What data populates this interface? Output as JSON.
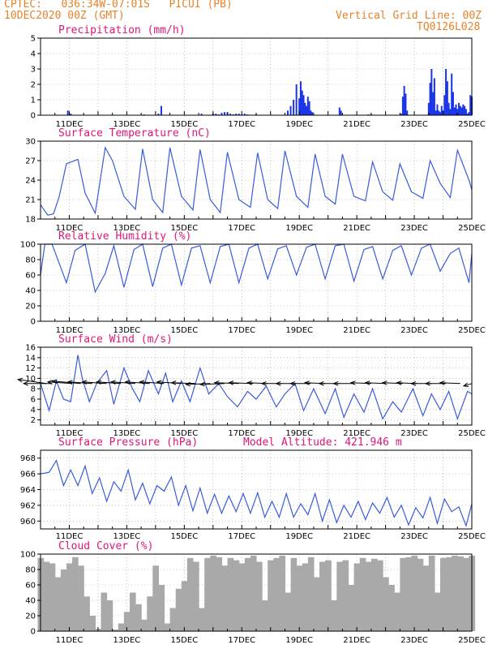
{
  "header": {
    "line1_left": "CPTEC:   036:34W-07:01S   PICUI (PB)",
    "line2_left": "10DEC2020 00Z (GMT)",
    "line2_right": "Vertical Grid Line: 00Z",
    "line3_right": "TQ0126L028"
  },
  "colors": {
    "header": "#e8822a",
    "title": "#e0157a",
    "line": "#3a5bd9",
    "bar": "#1a35e8",
    "cloud": "#a9a9a9",
    "arrow": "#000000"
  },
  "chart_data": [
    {
      "id": "precip",
      "type": "bar",
      "title": "Precipitation (mm/h)",
      "ylim": [
        0,
        5
      ],
      "yticks": [
        0,
        1,
        2,
        3,
        4,
        5
      ],
      "x_unit": "days since 10DEC2020 00Z",
      "x_ticks": [
        "11DEC",
        "13DEC",
        "15DEC",
        "17DEC",
        "19DEC",
        "21DEC",
        "23DEC",
        "25DEC"
      ],
      "x": [
        0.95,
        1.05,
        3.6,
        4.1,
        4.2,
        5.6,
        6.0,
        6.1,
        6.2,
        6.3,
        6.4,
        6.5,
        6.6,
        6.7,
        6.8,
        6.9,
        7.0,
        7.1,
        7.2,
        7.5,
        8.6,
        8.7,
        8.8,
        8.9,
        9.0,
        9.05,
        9.1,
        9.15,
        9.2,
        9.25,
        9.3,
        9.35,
        9.4,
        9.45,
        10.4,
        10.45,
        11.4,
        11.5,
        12.55,
        12.6,
        12.65,
        12.7,
        12.75,
        13.5,
        13.55,
        13.6,
        13.65,
        13.7,
        13.75,
        13.8,
        13.85,
        13.9,
        13.95,
        14.0,
        14.05,
        14.1,
        14.15,
        14.2,
        14.25,
        14.3,
        14.35,
        14.4,
        14.45,
        14.5,
        14.55,
        14.6,
        14.65,
        14.7,
        14.75,
        14.8,
        14.85,
        14.9,
        14.95,
        15.0
      ],
      "values": [
        0.3,
        0.1,
        0.05,
        0.1,
        0.6,
        0.1,
        0.1,
        0.1,
        0.05,
        0.15,
        0.2,
        0.2,
        0.1,
        0.05,
        0.1,
        0.1,
        0.05,
        0.1,
        0.05,
        0.05,
        0.3,
        0.6,
        1.0,
        2.0,
        1.1,
        2.2,
        1.6,
        1.3,
        0.8,
        0.6,
        1.2,
        0.9,
        0.3,
        0.2,
        0.5,
        0.3,
        0.05,
        0.05,
        0.1,
        1.2,
        1.9,
        1.4,
        0.3,
        0.8,
        2.1,
        3.0,
        1.5,
        2.4,
        0.3,
        0.7,
        0.3,
        0.2,
        0.6,
        0.3,
        1.3,
        3.0,
        2.2,
        0.8,
        0.4,
        2.7,
        1.5,
        0.5,
        0.7,
        0.4,
        0.8,
        0.6,
        0.5,
        0.7,
        0.6,
        0.4,
        0.1,
        0.2,
        1.3,
        1.2
      ]
    },
    {
      "id": "temp",
      "type": "line",
      "title": "Surface Temperature (nC)",
      "ylim": [
        18,
        30
      ],
      "yticks": [
        18,
        21,
        24,
        27,
        30
      ],
      "x_ticks": [
        "11DEC",
        "13DEC",
        "15DEC",
        "17DEC",
        "19DEC",
        "21DEC",
        "23DEC",
        "25DEC"
      ],
      "x": [
        0,
        0.25,
        0.45,
        0.65,
        0.9,
        1.3,
        1.55,
        1.9,
        2.25,
        2.5,
        2.9,
        3.3,
        3.55,
        3.9,
        4.25,
        4.5,
        4.9,
        5.3,
        5.55,
        5.9,
        6.25,
        6.5,
        6.9,
        7.3,
        7.55,
        7.9,
        8.25,
        8.5,
        8.9,
        9.3,
        9.55,
        9.9,
        10.25,
        10.5,
        10.9,
        11.3,
        11.55,
        11.9,
        12.25,
        12.5,
        12.9,
        13.3,
        13.55,
        13.9,
        14.25,
        14.5,
        14.9,
        15.0
      ],
      "values": [
        20.2,
        18.6,
        18.8,
        21.5,
        26.5,
        27.2,
        22.0,
        18.9,
        29.0,
        27.0,
        21.5,
        19.5,
        28.8,
        21.0,
        19.0,
        29.0,
        21.5,
        19.4,
        28.7,
        21.0,
        19.0,
        28.3,
        21.0,
        19.8,
        28.2,
        21.0,
        19.6,
        28.5,
        21.5,
        19.8,
        28.0,
        21.5,
        20.3,
        28.0,
        21.5,
        20.8,
        26.8,
        22.2,
        20.9,
        26.5,
        22.2,
        21.2,
        27.0,
        23.5,
        21.3,
        28.6,
        24.0,
        22.5
      ]
    },
    {
      "id": "rh",
      "type": "line",
      "title": "Relative Humidity (%)",
      "ylim": [
        0,
        100
      ],
      "yticks": [
        0,
        20,
        40,
        60,
        80,
        100
      ],
      "x_ticks": [
        "11DEC",
        "13DEC",
        "15DEC",
        "17DEC",
        "19DEC",
        "21DEC",
        "23DEC",
        "25DEC"
      ],
      "x": [
        0,
        0.15,
        0.4,
        0.65,
        0.9,
        1.2,
        1.55,
        1.9,
        2.25,
        2.55,
        2.9,
        3.25,
        3.55,
        3.9,
        4.25,
        4.55,
        4.9,
        5.25,
        5.55,
        5.9,
        6.25,
        6.55,
        6.9,
        7.25,
        7.55,
        7.9,
        8.25,
        8.55,
        8.9,
        9.25,
        9.55,
        9.9,
        10.25,
        10.55,
        10.9,
        11.25,
        11.55,
        11.9,
        12.25,
        12.55,
        12.9,
        13.25,
        13.55,
        13.9,
        14.25,
        14.55,
        14.9,
        15.0
      ],
      "values": [
        60,
        100,
        100,
        75,
        50,
        92,
        100,
        38,
        62,
        98,
        44,
        93,
        100,
        45,
        95,
        100,
        47,
        95,
        98,
        50,
        97,
        100,
        50,
        95,
        100,
        55,
        94,
        98,
        60,
        96,
        100,
        55,
        98,
        100,
        52,
        93,
        97,
        55,
        92,
        98,
        60,
        95,
        100,
        65,
        88,
        95,
        50,
        88
      ]
    },
    {
      "id": "wind",
      "type": "line",
      "title": "Surface Wind (m/s)",
      "ylim": [
        1,
        16
      ],
      "yticks": [
        2,
        4,
        6,
        8,
        10,
        12,
        14,
        16
      ],
      "x_ticks": [
        "11DEC",
        "13DEC",
        "15DEC",
        "17DEC",
        "19DEC",
        "21DEC",
        "23DEC",
        "25DEC"
      ],
      "x": [
        0,
        0.3,
        0.55,
        0.8,
        1.05,
        1.3,
        1.45,
        1.7,
        1.95,
        2.3,
        2.55,
        2.9,
        3.2,
        3.45,
        3.75,
        4.1,
        4.35,
        4.6,
        4.9,
        5.2,
        5.55,
        5.85,
        6.2,
        6.5,
        6.85,
        7.2,
        7.5,
        7.85,
        8.2,
        8.5,
        8.85,
        9.15,
        9.5,
        9.9,
        10.25,
        10.55,
        10.9,
        11.25,
        11.55,
        11.9,
        12.25,
        12.55,
        12.95,
        13.3,
        13.6,
        13.9,
        14.2,
        14.5,
        14.85,
        15.0
      ],
      "values": [
        9,
        3.8,
        9.5,
        6,
        5.5,
        14.5,
        10,
        5.5,
        9,
        11.5,
        5,
        12,
        8,
        5.5,
        11.5,
        7,
        11,
        5.5,
        9.5,
        5.5,
        12,
        7,
        9,
        6.5,
        4.5,
        7.5,
        6,
        8.5,
        4.5,
        7,
        9,
        3.8,
        8,
        3.2,
        8,
        2.5,
        7,
        3.5,
        8,
        2.2,
        5.5,
        3.5,
        8,
        2.8,
        7,
        4,
        7.5,
        2.2,
        7.5,
        7
      ],
      "arrows": [
        {
          "x": 0.2,
          "u": -0.35,
          "v": 0.25
        },
        {
          "x": 0.4,
          "u": -0.35,
          "v": 0
        },
        {
          "x": 1.1,
          "u": -0.3,
          "v": 0.1
        },
        {
          "x": 1.4,
          "u": -0.35,
          "v": 0.15
        },
        {
          "x": 1.8,
          "u": -0.3,
          "v": 0.1
        },
        {
          "x": 2.3,
          "u": -0.3,
          "v": 0.1
        },
        {
          "x": 2.8,
          "u": -0.3,
          "v": 0.1
        },
        {
          "x": 3.3,
          "u": -0.3,
          "v": 0.1
        },
        {
          "x": 3.8,
          "u": -0.3,
          "v": 0.1
        },
        {
          "x": 4.3,
          "u": -0.3,
          "v": 0.1
        },
        {
          "x": 4.9,
          "u": -0.3,
          "v": 0.1
        },
        {
          "x": 5.4,
          "u": -0.3,
          "v": 0.05
        },
        {
          "x": 5.9,
          "u": -0.3,
          "v": -0.05
        },
        {
          "x": 6.4,
          "u": -0.3,
          "v": -0.05
        },
        {
          "x": 6.9,
          "u": -0.3,
          "v": 0.05
        },
        {
          "x": 7.4,
          "u": -0.3,
          "v": 0.05
        },
        {
          "x": 7.9,
          "u": -0.25,
          "v": 0.05
        },
        {
          "x": 8.4,
          "u": -0.25,
          "v": 0
        },
        {
          "x": 8.9,
          "u": -0.25,
          "v": 0
        },
        {
          "x": 9.4,
          "u": -0.25,
          "v": 0
        },
        {
          "x": 9.9,
          "u": -0.25,
          "v": 0.05
        },
        {
          "x": 10.4,
          "u": -0.25,
          "v": 0
        },
        {
          "x": 10.9,
          "u": -0.25,
          "v": 0
        },
        {
          "x": 11.5,
          "u": -0.25,
          "v": 0.05
        },
        {
          "x": 12.0,
          "u": -0.25,
          "v": 0.05
        },
        {
          "x": 12.6,
          "u": -0.25,
          "v": 0.05
        },
        {
          "x": 13.1,
          "u": -0.25,
          "v": 0.05
        },
        {
          "x": 13.6,
          "u": -0.25,
          "v": 0
        },
        {
          "x": 14.1,
          "u": -0.25,
          "v": 0
        },
        {
          "x": 14.6,
          "u": -0.25,
          "v": 0.05
        },
        {
          "x": 15.0,
          "u": -0.1,
          "v": -0.15
        }
      ]
    },
    {
      "id": "press",
      "type": "line",
      "title": "Surface Pressure (hPa)",
      "annotation": "Model Altitude: 421.946 m",
      "ylim": [
        959,
        969
      ],
      "yticks": [
        960,
        962,
        964,
        966,
        968
      ],
      "x_ticks": [
        "11DEC",
        "13DEC",
        "15DEC",
        "17DEC",
        "19DEC",
        "21DEC",
        "23DEC",
        "25DEC"
      ],
      "x": [
        0,
        0.3,
        0.55,
        0.8,
        1.05,
        1.3,
        1.55,
        1.8,
        2.05,
        2.3,
        2.55,
        2.8,
        3.05,
        3.3,
        3.55,
        3.8,
        4.05,
        4.3,
        4.55,
        4.8,
        5.05,
        5.3,
        5.55,
        5.8,
        6.05,
        6.3,
        6.55,
        6.8,
        7.05,
        7.3,
        7.55,
        7.8,
        8.05,
        8.3,
        8.55,
        8.8,
        9.05,
        9.3,
        9.55,
        9.8,
        10.05,
        10.3,
        10.55,
        10.8,
        11.05,
        11.3,
        11.55,
        11.8,
        12.05,
        12.3,
        12.55,
        12.8,
        13.05,
        13.3,
        13.55,
        13.8,
        14.05,
        14.3,
        14.55,
        14.8,
        15.0
      ],
      "values": [
        966,
        966.2,
        967.7,
        964.5,
        966.5,
        964.5,
        967.0,
        963.5,
        965.5,
        962.5,
        965,
        963.8,
        966.5,
        962.7,
        964.8,
        962.2,
        964.5,
        963.8,
        965.6,
        962,
        964.5,
        961.3,
        964.2,
        961,
        963.4,
        961,
        963.2,
        961.2,
        963.5,
        961,
        963.6,
        960.5,
        962.5,
        960.5,
        963.5,
        960.5,
        962.2,
        960.8,
        963.5,
        960,
        962.7,
        959.8,
        962.0,
        960.5,
        962.5,
        960.2,
        962.3,
        961,
        963,
        960.5,
        962.0,
        959.5,
        961.7,
        960.4,
        963,
        959.7,
        962.8,
        961.2,
        961.8,
        959.4,
        962.2
      ]
    },
    {
      "id": "cloud",
      "type": "area",
      "title": "Cloud Cover (%)",
      "ylim": [
        0,
        100
      ],
      "yticks": [
        0,
        20,
        40,
        60,
        80,
        100
      ],
      "x_ticks": [
        "11DEC",
        "13DEC",
        "15DEC",
        "17DEC",
        "19DEC",
        "21DEC",
        "23DEC",
        "25DEC"
      ],
      "x": [
        0,
        0.2,
        0.4,
        0.6,
        0.8,
        1.0,
        1.2,
        1.4,
        1.6,
        1.8,
        2.0,
        2.2,
        2.4,
        2.6,
        2.8,
        3.0,
        3.2,
        3.4,
        3.6,
        3.8,
        4.0,
        4.2,
        4.4,
        4.6,
        4.8,
        5.0,
        5.2,
        5.4,
        5.6,
        5.8,
        6.0,
        6.2,
        6.4,
        6.6,
        6.8,
        7.0,
        7.2,
        7.4,
        7.6,
        7.8,
        8.0,
        8.2,
        8.4,
        8.6,
        8.8,
        9.0,
        9.2,
        9.4,
        9.6,
        9.8,
        10.0,
        10.2,
        10.4,
        10.6,
        10.8,
        11.0,
        11.2,
        11.4,
        11.6,
        11.8,
        12.0,
        12.2,
        12.4,
        12.6,
        12.8,
        13.0,
        13.2,
        13.4,
        13.6,
        13.8,
        14.0,
        14.2,
        14.4,
        14.6,
        14.8,
        15.0
      ],
      "values": [
        95,
        90,
        88,
        70,
        80,
        88,
        96,
        85,
        45,
        20,
        3,
        50,
        40,
        2,
        10,
        25,
        50,
        35,
        15,
        45,
        85,
        60,
        10,
        30,
        55,
        65,
        95,
        90,
        30,
        95,
        98,
        96,
        85,
        95,
        92,
        88,
        95,
        98,
        90,
        40,
        92,
        95,
        98,
        50,
        95,
        85,
        88,
        96,
        70,
        90,
        92,
        40,
        90,
        92,
        60,
        88,
        95,
        90,
        94,
        92,
        70,
        60,
        50,
        95,
        96,
        98,
        94,
        85,
        98,
        50,
        95,
        96,
        98,
        97,
        95,
        98
      ]
    }
  ]
}
